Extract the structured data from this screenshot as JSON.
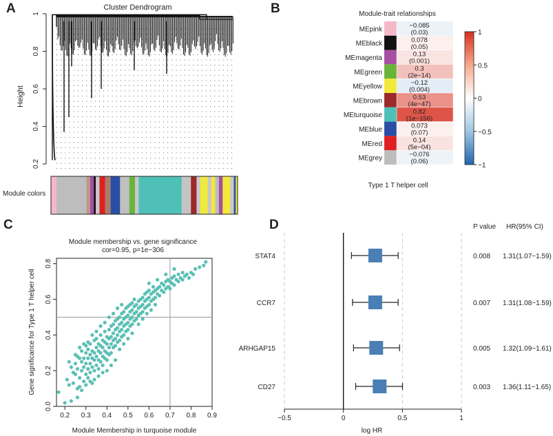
{
  "panels": {
    "a": {
      "letter": "A",
      "title": "Cluster Dendrogram",
      "ylabel": "Height",
      "module_colors_label": "Module colors"
    },
    "b": {
      "letter": "B",
      "title": "Module-trait relationships",
      "xlabel": "Type 1 T helper cell"
    },
    "c": {
      "letter": "C"
    },
    "d": {
      "letter": "D"
    }
  },
  "chart_data": [
    {
      "type": "dendrogram",
      "title": "Cluster Dendrogram",
      "ylabel": "Height",
      "yticks": [
        0.2,
        0.4,
        0.6,
        0.8,
        1.0
      ],
      "ytick_labels": [
        "0.2",
        "0.4",
        "0.6",
        "0.8",
        "1"
      ],
      "ylim": [
        0.2,
        1.0
      ],
      "module_bar_label": "Module colors",
      "module_color_segments": [
        {
          "module": "pink",
          "color": "#f4b8c8",
          "fraction": 0.03
        },
        {
          "module": "grey",
          "color": "#bdbdbd",
          "fraction": 0.16
        },
        {
          "module": "mixed",
          "color": "#b99a8a",
          "fraction": 0.02
        },
        {
          "module": "magenta",
          "color": "#a64fa3",
          "fraction": 0.02
        },
        {
          "module": "black",
          "color": "#111111",
          "fraction": 0.01
        },
        {
          "module": "grey",
          "color": "#c8c8c8",
          "fraction": 0.02
        },
        {
          "module": "red",
          "color": "#e02020",
          "fraction": 0.03
        },
        {
          "module": "mixed",
          "color": "#a97c6c",
          "fraction": 0.03
        },
        {
          "module": "blue",
          "color": "#2a4ea6",
          "fraction": 0.05
        },
        {
          "module": "grey",
          "color": "#c0c0c0",
          "fraction": 0.05
        },
        {
          "module": "green",
          "color": "#6ab43a",
          "fraction": 0.03
        },
        {
          "module": "grey",
          "color": "#c8c8c8",
          "fraction": 0.02
        },
        {
          "module": "turquoise",
          "color": "#4fc0b8",
          "fraction": 0.23
        },
        {
          "module": "grey",
          "color": "#c4c4c4",
          "fraction": 0.05
        },
        {
          "module": "brown",
          "color": "#9b2a2a",
          "fraction": 0.03
        },
        {
          "module": "grey",
          "color": "#c8c8c8",
          "fraction": 0.02
        },
        {
          "module": "yellow",
          "color": "#f2e93a",
          "fraction": 0.04
        },
        {
          "module": "grey",
          "color": "#c8c8c8",
          "fraction": 0.02
        },
        {
          "module": "yellow",
          "color": "#f2e93a",
          "fraction": 0.02
        },
        {
          "module": "grey",
          "color": "#bdbdbd",
          "fraction": 0.02
        },
        {
          "module": "magenta",
          "color": "#a64fa3",
          "fraction": 0.02
        },
        {
          "module": "yellow",
          "color": "#f2e93a",
          "fraction": 0.04
        },
        {
          "module": "grey",
          "color": "#c8c8c8",
          "fraction": 0.02
        },
        {
          "module": "blue",
          "color": "#2a4ea6",
          "fraction": 0.01
        },
        {
          "module": "yellow",
          "color": "#f2e93a",
          "fraction": 0.01
        }
      ]
    },
    {
      "type": "heatmap",
      "title": "Module-trait relationships",
      "xlabel": "Type 1 T helper cell",
      "rows": [
        {
          "module": "MEpink",
          "color": "#f4b8c8",
          "cor": -0.085,
          "cor_label": "−0.085",
          "p_label": "(0.03)"
        },
        {
          "module": "MEblack",
          "color": "#111111",
          "cor": 0.078,
          "cor_label": "0.078",
          "p_label": "(0.05)"
        },
        {
          "module": "MEmagenta",
          "color": "#a64fa3",
          "cor": 0.13,
          "cor_label": "0.13",
          "p_label": "(0.001)"
        },
        {
          "module": "MEgreen",
          "color": "#6ab43a",
          "cor": 0.3,
          "cor_label": "0.3",
          "p_label": "(2e−14)"
        },
        {
          "module": "MEyellow",
          "color": "#f2e93a",
          "cor": -0.12,
          "cor_label": "−0.12",
          "p_label": "(0.004)"
        },
        {
          "module": "MEbrown",
          "color": "#9b2a2a",
          "cor": 0.53,
          "cor_label": "0.53",
          "p_label": "(4e−47)"
        },
        {
          "module": "MEturquoise",
          "color": "#4fc0b8",
          "cor": 0.82,
          "cor_label": "0.82",
          "p_label": "(1e−156)"
        },
        {
          "module": "MEblue",
          "color": "#2a4ea6",
          "cor": 0.073,
          "cor_label": "0.073",
          "p_label": "(0.07)"
        },
        {
          "module": "MEred",
          "color": "#e02020",
          "cor": 0.14,
          "cor_label": "0.14",
          "p_label": "(5e−04)"
        },
        {
          "module": "MEgrey",
          "color": "#bdbdbd",
          "cor": -0.076,
          "cor_label": "−0.076",
          "p_label": "(0.06)"
        }
      ],
      "colorbar": {
        "ticks": [
          1,
          0.5,
          0,
          -0.5,
          -1
        ],
        "tick_labels": [
          "1",
          "0.5",
          "0",
          "−0.5",
          "−1"
        ],
        "range": [
          -1,
          1
        ]
      }
    },
    {
      "type": "scatter",
      "title": "Module membership vs. gene significance",
      "subtitle": "cor=0.95, p=1e−306",
      "xlabel": "Module Membership in turquoise module",
      "ylabel": "Gene significance for Type 1 T helper cell",
      "xlim": [
        0.16,
        0.9
      ],
      "ylim": [
        0.0,
        0.83
      ],
      "xticks": [
        0.2,
        0.3,
        0.4,
        0.5,
        0.6,
        0.7,
        0.8,
        0.9
      ],
      "xtick_labels": [
        "0.2",
        "0.3",
        "0.4",
        "0.5",
        "0.6",
        "0.7",
        "0.8",
        "0.9"
      ],
      "yticks": [
        0.0,
        0.2,
        0.4,
        0.6,
        0.8
      ],
      "ytick_labels": [
        "0.0",
        "0.2",
        "0.4",
        "0.6",
        "0.8"
      ],
      "reference_lines": {
        "x": 0.7,
        "y": 0.5
      },
      "point_color": "#5bc0b5",
      "points": [
        [
          0.17,
          0.08
        ],
        [
          0.2,
          0.02
        ],
        [
          0.21,
          0.15
        ],
        [
          0.22,
          0.12
        ],
        [
          0.23,
          0.22
        ],
        [
          0.23,
          0.03
        ],
        [
          0.24,
          0.13
        ],
        [
          0.24,
          0.19
        ],
        [
          0.25,
          0.18
        ],
        [
          0.25,
          0.24
        ],
        [
          0.26,
          0.05
        ],
        [
          0.26,
          0.21
        ],
        [
          0.26,
          0.28
        ],
        [
          0.27,
          0.11
        ],
        [
          0.27,
          0.16
        ],
        [
          0.27,
          0.27
        ],
        [
          0.28,
          0.2
        ],
        [
          0.28,
          0.25
        ],
        [
          0.28,
          0.31
        ],
        [
          0.29,
          0.14
        ],
        [
          0.29,
          0.22
        ],
        [
          0.29,
          0.27
        ],
        [
          0.3,
          0.18
        ],
        [
          0.3,
          0.24
        ],
        [
          0.3,
          0.3
        ],
        [
          0.3,
          0.34
        ],
        [
          0.31,
          0.16
        ],
        [
          0.31,
          0.21
        ],
        [
          0.31,
          0.27
        ],
        [
          0.31,
          0.32
        ],
        [
          0.32,
          0.19
        ],
        [
          0.32,
          0.24
        ],
        [
          0.32,
          0.29
        ],
        [
          0.32,
          0.35
        ],
        [
          0.33,
          0.13
        ],
        [
          0.33,
          0.22
        ],
        [
          0.33,
          0.27
        ],
        [
          0.33,
          0.31
        ],
        [
          0.34,
          0.2
        ],
        [
          0.34,
          0.26
        ],
        [
          0.34,
          0.3
        ],
        [
          0.34,
          0.37
        ],
        [
          0.35,
          0.23
        ],
        [
          0.35,
          0.28
        ],
        [
          0.35,
          0.33
        ],
        [
          0.35,
          0.38
        ],
        [
          0.36,
          0.21
        ],
        [
          0.36,
          0.26
        ],
        [
          0.36,
          0.31
        ],
        [
          0.36,
          0.35
        ],
        [
          0.37,
          0.25
        ],
        [
          0.37,
          0.3
        ],
        [
          0.37,
          0.34
        ],
        [
          0.37,
          0.4
        ],
        [
          0.38,
          0.23
        ],
        [
          0.38,
          0.28
        ],
        [
          0.38,
          0.33
        ],
        [
          0.38,
          0.37
        ],
        [
          0.39,
          0.27
        ],
        [
          0.39,
          0.31
        ],
        [
          0.39,
          0.36
        ],
        [
          0.39,
          0.42
        ],
        [
          0.4,
          0.26
        ],
        [
          0.4,
          0.3
        ],
        [
          0.4,
          0.35
        ],
        [
          0.4,
          0.39
        ],
        [
          0.41,
          0.29
        ],
        [
          0.41,
          0.33
        ],
        [
          0.41,
          0.38
        ],
        [
          0.41,
          0.43
        ],
        [
          0.42,
          0.3
        ],
        [
          0.42,
          0.35
        ],
        [
          0.42,
          0.39
        ],
        [
          0.42,
          0.45
        ],
        [
          0.43,
          0.33
        ],
        [
          0.43,
          0.37
        ],
        [
          0.43,
          0.41
        ],
        [
          0.43,
          0.46
        ],
        [
          0.44,
          0.34
        ],
        [
          0.44,
          0.38
        ],
        [
          0.44,
          0.43
        ],
        [
          0.44,
          0.48
        ],
        [
          0.45,
          0.36
        ],
        [
          0.45,
          0.4
        ],
        [
          0.45,
          0.44
        ],
        [
          0.45,
          0.49
        ],
        [
          0.46,
          0.37
        ],
        [
          0.46,
          0.42
        ],
        [
          0.46,
          0.46
        ],
        [
          0.46,
          0.5
        ],
        [
          0.47,
          0.39
        ],
        [
          0.47,
          0.43
        ],
        [
          0.47,
          0.47
        ],
        [
          0.47,
          0.52
        ],
        [
          0.48,
          0.4
        ],
        [
          0.48,
          0.45
        ],
        [
          0.48,
          0.49
        ],
        [
          0.48,
          0.53
        ],
        [
          0.49,
          0.42
        ],
        [
          0.49,
          0.46
        ],
        [
          0.49,
          0.5
        ],
        [
          0.49,
          0.55
        ],
        [
          0.5,
          0.43
        ],
        [
          0.5,
          0.47
        ],
        [
          0.5,
          0.51
        ],
        [
          0.5,
          0.56
        ],
        [
          0.51,
          0.45
        ],
        [
          0.51,
          0.49
        ],
        [
          0.51,
          0.53
        ],
        [
          0.51,
          0.57
        ],
        [
          0.52,
          0.46
        ],
        [
          0.52,
          0.5
        ],
        [
          0.52,
          0.54
        ],
        [
          0.52,
          0.58
        ],
        [
          0.53,
          0.48
        ],
        [
          0.53,
          0.52
        ],
        [
          0.53,
          0.56
        ],
        [
          0.53,
          0.6
        ],
        [
          0.54,
          0.49
        ],
        [
          0.54,
          0.53
        ],
        [
          0.54,
          0.57
        ],
        [
          0.55,
          0.51
        ],
        [
          0.55,
          0.55
        ],
        [
          0.55,
          0.59
        ],
        [
          0.56,
          0.52
        ],
        [
          0.56,
          0.56
        ],
        [
          0.56,
          0.6
        ],
        [
          0.57,
          0.53
        ],
        [
          0.57,
          0.57
        ],
        [
          0.57,
          0.61
        ],
        [
          0.58,
          0.55
        ],
        [
          0.58,
          0.59
        ],
        [
          0.58,
          0.63
        ],
        [
          0.59,
          0.56
        ],
        [
          0.59,
          0.6
        ],
        [
          0.59,
          0.64
        ],
        [
          0.6,
          0.57
        ],
        [
          0.6,
          0.61
        ],
        [
          0.6,
          0.65
        ],
        [
          0.61,
          0.59
        ],
        [
          0.61,
          0.63
        ],
        [
          0.62,
          0.6
        ],
        [
          0.62,
          0.64
        ],
        [
          0.62,
          0.67
        ],
        [
          0.63,
          0.61
        ],
        [
          0.63,
          0.65
        ],
        [
          0.64,
          0.63
        ],
        [
          0.64,
          0.66
        ],
        [
          0.65,
          0.62
        ],
        [
          0.65,
          0.67
        ],
        [
          0.66,
          0.65
        ],
        [
          0.66,
          0.69
        ],
        [
          0.67,
          0.64
        ],
        [
          0.67,
          0.68
        ],
        [
          0.68,
          0.66
        ],
        [
          0.68,
          0.7
        ],
        [
          0.69,
          0.67
        ],
        [
          0.69,
          0.71
        ],
        [
          0.7,
          0.66
        ],
        [
          0.7,
          0.7
        ],
        [
          0.71,
          0.69
        ],
        [
          0.71,
          0.72
        ],
        [
          0.72,
          0.68
        ],
        [
          0.72,
          0.73
        ],
        [
          0.73,
          0.71
        ],
        [
          0.74,
          0.7
        ],
        [
          0.74,
          0.74
        ],
        [
          0.75,
          0.72
        ],
        [
          0.76,
          0.71
        ],
        [
          0.76,
          0.75
        ],
        [
          0.77,
          0.73
        ],
        [
          0.78,
          0.74
        ],
        [
          0.79,
          0.72
        ],
        [
          0.8,
          0.75
        ],
        [
          0.81,
          0.74
        ],
        [
          0.82,
          0.77
        ],
        [
          0.84,
          0.78
        ],
        [
          0.86,
          0.79
        ],
        [
          0.87,
          0.81
        ],
        [
          0.36,
          0.17
        ],
        [
          0.38,
          0.19
        ],
        [
          0.4,
          0.2
        ],
        [
          0.42,
          0.23
        ],
        [
          0.44,
          0.26
        ],
        [
          0.46,
          0.32
        ],
        [
          0.48,
          0.35
        ],
        [
          0.5,
          0.38
        ],
        [
          0.52,
          0.41
        ],
        [
          0.31,
          0.36
        ],
        [
          0.33,
          0.4
        ],
        [
          0.35,
          0.42
        ],
        [
          0.37,
          0.45
        ],
        [
          0.39,
          0.47
        ],
        [
          0.41,
          0.5
        ],
        [
          0.43,
          0.52
        ],
        [
          0.45,
          0.55
        ],
        [
          0.47,
          0.57
        ],
        [
          0.55,
          0.46
        ],
        [
          0.57,
          0.49
        ],
        [
          0.59,
          0.52
        ],
        [
          0.61,
          0.54
        ],
        [
          0.63,
          0.57
        ],
        [
          0.26,
          0.1
        ],
        [
          0.28,
          0.09
        ],
        [
          0.3,
          0.12
        ],
        [
          0.32,
          0.14
        ],
        [
          0.34,
          0.15
        ],
        [
          0.29,
          0.35
        ],
        [
          0.27,
          0.33
        ],
        [
          0.25,
          0.29
        ],
        [
          0.22,
          0.25
        ],
        [
          0.6,
          0.69
        ],
        [
          0.64,
          0.71
        ],
        [
          0.68,
          0.74
        ],
        [
          0.72,
          0.77
        ]
      ]
    },
    {
      "type": "forest",
      "xlabel": "log HR",
      "xlim": [
        -0.5,
        1.0
      ],
      "xticks": [
        -0.5,
        0,
        0.5,
        1
      ],
      "xtick_labels": [
        "−0.5",
        "0",
        "0.5",
        "1"
      ],
      "reference_line_x": 0,
      "header_pvalue": "P value",
      "header_hr": "HR(95% CI)",
      "box_color": "#4a7fb5",
      "rows": [
        {
          "gene": "STAT4",
          "log_hr": 0.27,
          "log_low": 0.068,
          "log_high": 0.464,
          "p_value": "0.008",
          "hr_ci": "1.31(1.07−1.59)"
        },
        {
          "gene": "CCR7",
          "log_hr": 0.27,
          "log_low": 0.077,
          "log_high": 0.464,
          "p_value": "0.007",
          "hr_ci": "1.31(1.08−1.59)"
        },
        {
          "gene": "ARHGAP15",
          "log_hr": 0.278,
          "log_low": 0.086,
          "log_high": 0.476,
          "p_value": "0.005",
          "hr_ci": "1.32(1.09−1.61)"
        },
        {
          "gene": "CD27",
          "log_hr": 0.307,
          "log_low": 0.104,
          "log_high": 0.501,
          "p_value": "0.003",
          "hr_ci": "1.36(1.11−1.65)"
        }
      ]
    }
  ]
}
